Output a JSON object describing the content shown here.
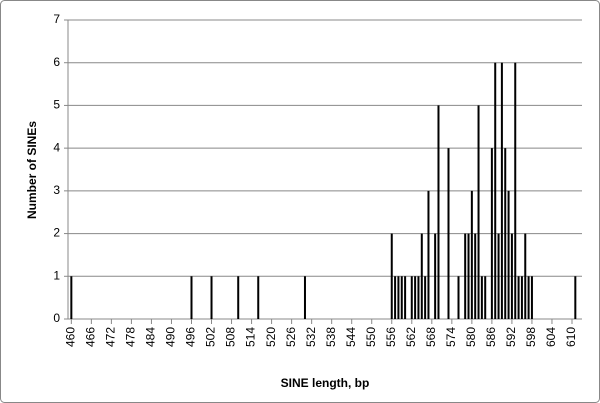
{
  "chart_data": {
    "type": "bar",
    "x_label": "SINE length, bp",
    "y_label": "Number of SINEs",
    "x": [
      460,
      496,
      502,
      510,
      516,
      530,
      556,
      557,
      558,
      559,
      560,
      562,
      563,
      564,
      565,
      566,
      567,
      569,
      570,
      573,
      576,
      578,
      579,
      580,
      581,
      582,
      583,
      584,
      586,
      587,
      588,
      589,
      590,
      591,
      592,
      593,
      594,
      595,
      596,
      597,
      598,
      611
    ],
    "values": [
      1,
      1,
      1,
      1,
      1,
      1,
      2,
      1,
      1,
      1,
      1,
      1,
      1,
      1,
      2,
      1,
      3,
      2,
      5,
      4,
      1,
      2,
      2,
      3,
      2,
      5,
      1,
      1,
      4,
      6,
      2,
      6,
      4,
      3,
      2,
      6,
      1,
      1,
      2,
      1,
      1,
      1
    ],
    "color": "#000000",
    "xlim": [
      459,
      613
    ],
    "xticks": [
      460,
      466,
      472,
      478,
      484,
      490,
      496,
      502,
      508,
      514,
      520,
      526,
      532,
      538,
      544,
      550,
      556,
      562,
      568,
      574,
      580,
      586,
      592,
      598,
      604,
      610
    ],
    "ylim": [
      0,
      7
    ],
    "yticks": [
      0,
      1,
      2,
      3,
      4,
      5,
      6,
      7
    ],
    "grid": true
  }
}
